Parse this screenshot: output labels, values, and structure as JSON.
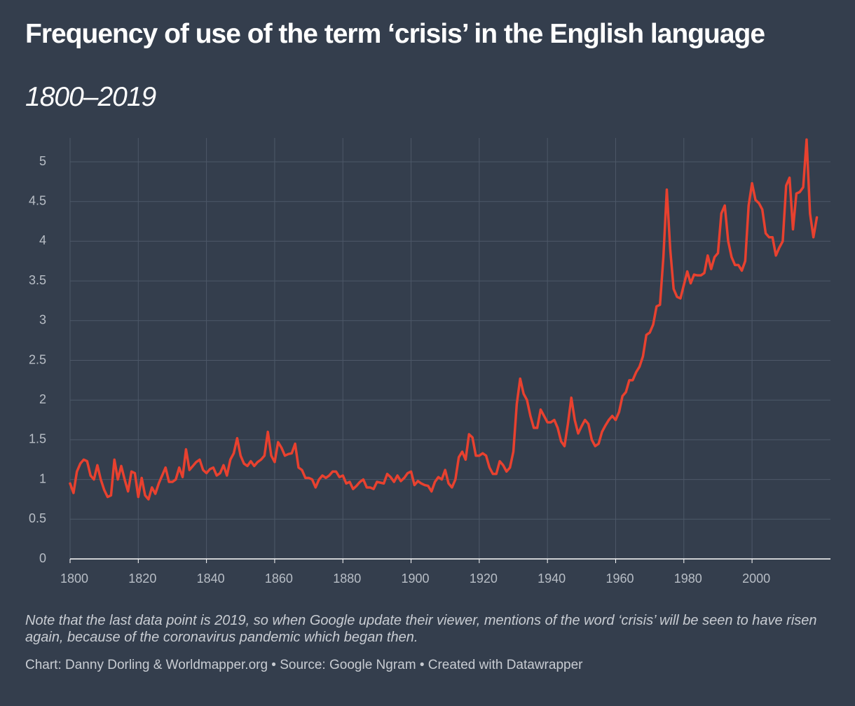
{
  "chart_data": {
    "type": "line",
    "title": "Frequency of use of the term ‘crisis’ in the English language",
    "subtitle": "1800–2019",
    "note": "Note that the last data point is 2019, so when Google update their viewer, mentions of the word ‘crisis’ will be seen to have risen again, because of the coronavirus pandemic which began then.",
    "credit": "Chart: Danny Dorling & Worldmapper.org • Source: Google Ngram • Created with Datawrapper",
    "x": [
      1800,
      1801,
      1802,
      1803,
      1804,
      1805,
      1806,
      1807,
      1808,
      1809,
      1810,
      1811,
      1812,
      1813,
      1814,
      1815,
      1816,
      1817,
      1818,
      1819,
      1820,
      1821,
      1822,
      1823,
      1824,
      1825,
      1826,
      1827,
      1828,
      1829,
      1830,
      1831,
      1832,
      1833,
      1834,
      1835,
      1836,
      1837,
      1838,
      1839,
      1840,
      1841,
      1842,
      1843,
      1844,
      1845,
      1846,
      1847,
      1848,
      1849,
      1850,
      1851,
      1852,
      1853,
      1854,
      1855,
      1856,
      1857,
      1858,
      1859,
      1860,
      1861,
      1862,
      1863,
      1864,
      1865,
      1866,
      1867,
      1868,
      1869,
      1870,
      1871,
      1872,
      1873,
      1874,
      1875,
      1876,
      1877,
      1878,
      1879,
      1880,
      1881,
      1882,
      1883,
      1884,
      1885,
      1886,
      1887,
      1888,
      1889,
      1890,
      1891,
      1892,
      1893,
      1894,
      1895,
      1896,
      1897,
      1898,
      1899,
      1900,
      1901,
      1902,
      1903,
      1904,
      1905,
      1906,
      1907,
      1908,
      1909,
      1910,
      1911,
      1912,
      1913,
      1914,
      1915,
      1916,
      1917,
      1918,
      1919,
      1920,
      1921,
      1922,
      1923,
      1924,
      1925,
      1926,
      1927,
      1928,
      1929,
      1930,
      1931,
      1932,
      1933,
      1934,
      1935,
      1936,
      1937,
      1938,
      1939,
      1940,
      1941,
      1942,
      1943,
      1944,
      1945,
      1946,
      1947,
      1948,
      1949,
      1950,
      1951,
      1952,
      1953,
      1954,
      1955,
      1956,
      1957,
      1958,
      1959,
      1960,
      1961,
      1962,
      1963,
      1964,
      1965,
      1966,
      1967,
      1968,
      1969,
      1970,
      1971,
      1972,
      1973,
      1974,
      1975,
      1976,
      1977,
      1978,
      1979,
      1980,
      1981,
      1982,
      1983,
      1984,
      1985,
      1986,
      1987,
      1988,
      1989,
      1990,
      1991,
      1992,
      1993,
      1994,
      1995,
      1996,
      1997,
      1998,
      1999,
      2000,
      2001,
      2002,
      2003,
      2004,
      2005,
      2006,
      2007,
      2008,
      2009,
      2010,
      2011,
      2012,
      2013,
      2014,
      2015,
      2016,
      2017,
      2018,
      2019
    ],
    "series": [
      {
        "color": "#e8412f",
        "values": [
          0.95,
          0.83,
          1.1,
          1.2,
          1.25,
          1.23,
          1.05,
          1.0,
          1.18,
          1.0,
          0.87,
          0.78,
          0.8,
          1.25,
          1.0,
          1.17,
          1.0,
          0.85,
          1.1,
          1.08,
          0.78,
          1.02,
          0.8,
          0.75,
          0.9,
          0.82,
          0.95,
          1.05,
          1.15,
          0.97,
          0.97,
          1.0,
          1.15,
          1.03,
          1.38,
          1.12,
          1.17,
          1.22,
          1.25,
          1.12,
          1.08,
          1.13,
          1.15,
          1.05,
          1.08,
          1.18,
          1.05,
          1.25,
          1.33,
          1.52,
          1.3,
          1.2,
          1.17,
          1.23,
          1.17,
          1.22,
          1.25,
          1.3,
          1.6,
          1.3,
          1.22,
          1.47,
          1.4,
          1.3,
          1.32,
          1.33,
          1.45,
          1.15,
          1.12,
          1.02,
          1.02,
          1.0,
          0.9,
          1.0,
          1.05,
          1.02,
          1.05,
          1.1,
          1.1,
          1.03,
          1.05,
          0.95,
          0.97,
          0.88,
          0.92,
          0.97,
          1.0,
          0.9,
          0.9,
          0.88,
          0.97,
          0.96,
          0.95,
          1.07,
          1.03,
          0.97,
          1.05,
          0.98,
          1.02,
          1.08,
          1.1,
          0.93,
          0.98,
          0.95,
          0.93,
          0.92,
          0.85,
          0.97,
          1.03,
          1.0,
          1.12,
          0.95,
          0.9,
          1.0,
          1.28,
          1.35,
          1.25,
          1.57,
          1.53,
          1.3,
          1.3,
          1.33,
          1.3,
          1.15,
          1.07,
          1.07,
          1.23,
          1.18,
          1.1,
          1.15,
          1.35,
          1.95,
          2.27,
          2.08,
          2.0,
          1.8,
          1.65,
          1.65,
          1.88,
          1.8,
          1.72,
          1.72,
          1.75,
          1.65,
          1.48,
          1.42,
          1.7,
          2.03,
          1.75,
          1.58,
          1.67,
          1.75,
          1.7,
          1.5,
          1.42,
          1.45,
          1.6,
          1.68,
          1.75,
          1.8,
          1.75,
          1.85,
          2.05,
          2.1,
          2.25,
          2.25,
          2.35,
          2.42,
          2.55,
          2.82,
          2.85,
          2.95,
          3.18,
          3.2,
          3.8,
          4.65,
          3.9,
          3.4,
          3.3,
          3.28,
          3.45,
          3.62,
          3.47,
          3.58,
          3.57,
          3.57,
          3.6,
          3.82,
          3.65,
          3.8,
          3.85,
          4.35,
          4.45,
          4.0,
          3.8,
          3.7,
          3.7,
          3.63,
          3.75,
          4.45,
          4.73,
          4.52,
          4.48,
          4.4,
          4.1,
          4.05,
          4.05,
          3.82,
          3.92,
          4.0,
          4.7,
          4.8,
          4.15,
          4.6,
          4.62,
          4.68,
          5.28,
          4.35,
          4.05,
          4.3
        ]
      }
    ],
    "xlim": [
      1800,
      2023
    ],
    "xticks": [
      1800,
      1820,
      1840,
      1860,
      1880,
      1900,
      1920,
      1940,
      1960,
      1980,
      2000
    ],
    "ylim": [
      0,
      5.3
    ],
    "yticks": [
      0,
      0.5,
      1,
      1.5,
      2,
      2.5,
      3,
      3.5,
      4,
      4.5,
      5
    ],
    "grid": true
  }
}
